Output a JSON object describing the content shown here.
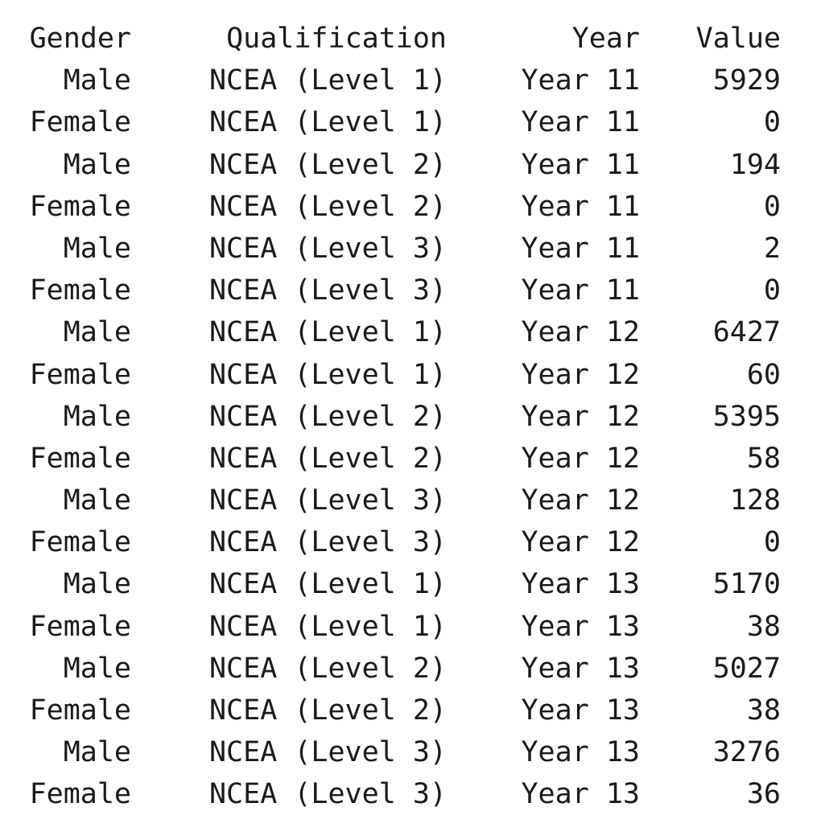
{
  "columns": {
    "gender": "Gender",
    "qualification": "Qualification",
    "year": "Year",
    "value": "Value"
  },
  "rows": [
    {
      "gender": "Male",
      "qualification": "NCEA (Level 1)",
      "year": "Year 11",
      "value": "5929"
    },
    {
      "gender": "Female",
      "qualification": "NCEA (Level 1)",
      "year": "Year 11",
      "value": "0"
    },
    {
      "gender": "Male",
      "qualification": "NCEA (Level 2)",
      "year": "Year 11",
      "value": "194"
    },
    {
      "gender": "Female",
      "qualification": "NCEA (Level 2)",
      "year": "Year 11",
      "value": "0"
    },
    {
      "gender": "Male",
      "qualification": "NCEA (Level 3)",
      "year": "Year 11",
      "value": "2"
    },
    {
      "gender": "Female",
      "qualification": "NCEA (Level 3)",
      "year": "Year 11",
      "value": "0"
    },
    {
      "gender": "Male",
      "qualification": "NCEA (Level 1)",
      "year": "Year 12",
      "value": "6427"
    },
    {
      "gender": "Female",
      "qualification": "NCEA (Level 1)",
      "year": "Year 12",
      "value": "60"
    },
    {
      "gender": "Male",
      "qualification": "NCEA (Level 2)",
      "year": "Year 12",
      "value": "5395"
    },
    {
      "gender": "Female",
      "qualification": "NCEA (Level 2)",
      "year": "Year 12",
      "value": "58"
    },
    {
      "gender": "Male",
      "qualification": "NCEA (Level 3)",
      "year": "Year 12",
      "value": "128"
    },
    {
      "gender": "Female",
      "qualification": "NCEA (Level 3)",
      "year": "Year 12",
      "value": "0"
    },
    {
      "gender": "Male",
      "qualification": "NCEA (Level 1)",
      "year": "Year 13",
      "value": "5170"
    },
    {
      "gender": "Female",
      "qualification": "NCEA (Level 1)",
      "year": "Year 13",
      "value": "38"
    },
    {
      "gender": "Male",
      "qualification": "NCEA (Level 2)",
      "year": "Year 13",
      "value": "5027"
    },
    {
      "gender": "Female",
      "qualification": "NCEA (Level 2)",
      "year": "Year 13",
      "value": "38"
    },
    {
      "gender": "Male",
      "qualification": "NCEA (Level 3)",
      "year": "Year 13",
      "value": "3276"
    },
    {
      "gender": "Female",
      "qualification": "NCEA (Level 3)",
      "year": "Year 13",
      "value": "36"
    }
  ]
}
